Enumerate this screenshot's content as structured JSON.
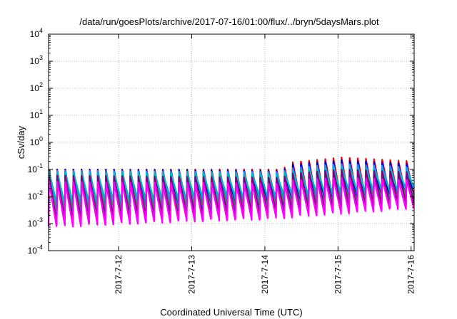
{
  "chart_data": {
    "type": "line",
    "title": "/data/run/goesPlots/archive/2017-07-16/01:00/flux/../bryn/5daysMars.plot",
    "xlabel": "Coordinated Universal Time (UTC)",
    "ylabel": "cSv/day",
    "yscale": "log",
    "ylim": [
      0.0001,
      10000
    ],
    "y_ticks": [
      {
        "base": "10",
        "exp": "-4",
        "value": 0.0001
      },
      {
        "base": "10",
        "exp": "-3",
        "value": 0.001
      },
      {
        "base": "10",
        "exp": "-2",
        "value": 0.01
      },
      {
        "base": "10",
        "exp": "-1",
        "value": 0.1
      },
      {
        "base": "10",
        "exp": "0",
        "value": 1
      },
      {
        "base": "10",
        "exp": "1",
        "value": 10
      },
      {
        "base": "10",
        "exp": "2",
        "value": 100
      },
      {
        "base": "10",
        "exp": "3",
        "value": 1000
      },
      {
        "base": "10",
        "exp": "4",
        "value": 10000
      }
    ],
    "xlim": [
      "2017-07-11T01:00",
      "2017-07-16T01:00"
    ],
    "x_ticks": [
      {
        "label": "2017-7-12",
        "date": "2017-07-12T00:00"
      },
      {
        "label": "2017-7-13",
        "date": "2017-07-13T00:00"
      },
      {
        "label": "2017-7-14",
        "date": "2017-07-14T00:00"
      },
      {
        "label": "2017-7-15",
        "date": "2017-07-15T00:00"
      },
      {
        "label": "2017-7-16",
        "date": "2017-07-16T00:00"
      }
    ],
    "grid": true,
    "legend": "none",
    "series": [
      {
        "color": "#ff0000",
        "peak_envelope": [
          [
            0,
            0.1
          ],
          [
            3.2,
            0.1
          ],
          [
            3.3,
            0.18
          ],
          [
            4.0,
            0.28
          ],
          [
            5.0,
            0.2
          ]
        ],
        "trough_envelope": [
          [
            0,
            0.0025
          ],
          [
            1.5,
            0.004
          ],
          [
            3.0,
            0.006
          ],
          [
            5.0,
            0.012
          ]
        ]
      },
      {
        "color": "#0000cc",
        "peak_envelope": [
          [
            0,
            0.1
          ],
          [
            3.2,
            0.09
          ],
          [
            3.3,
            0.15
          ],
          [
            4.0,
            0.22
          ],
          [
            5.0,
            0.16
          ]
        ],
        "trough_envelope": [
          [
            0,
            0.0018
          ],
          [
            1.5,
            0.003
          ],
          [
            3.0,
            0.004
          ],
          [
            5.0,
            0.008
          ]
        ]
      },
      {
        "color": "#1e90ff",
        "peak_envelope": [
          [
            0,
            0.09
          ],
          [
            3.2,
            0.08
          ],
          [
            3.3,
            0.11
          ],
          [
            4.0,
            0.16
          ],
          [
            5.0,
            0.12
          ]
        ],
        "trough_envelope": [
          [
            0,
            0.004
          ],
          [
            1.5,
            0.006
          ],
          [
            3.0,
            0.008
          ],
          [
            5.0,
            0.018
          ]
        ]
      },
      {
        "color": "#00bbbb",
        "peak_envelope": [
          [
            0,
            0.08
          ],
          [
            3.2,
            0.07
          ],
          [
            3.3,
            0.09
          ],
          [
            4.0,
            0.12
          ],
          [
            5.0,
            0.09
          ]
        ],
        "trough_envelope": [
          [
            0,
            0.006
          ],
          [
            1.5,
            0.008
          ],
          [
            3.0,
            0.01
          ],
          [
            5.0,
            0.02
          ]
        ]
      },
      {
        "color": "#2e8b57",
        "peak_envelope": [
          [
            0,
            0.04
          ],
          [
            3.2,
            0.035
          ],
          [
            3.3,
            0.045
          ],
          [
            4.0,
            0.06
          ],
          [
            5.0,
            0.05
          ]
        ],
        "trough_envelope": [
          [
            0,
            0.003
          ],
          [
            1.5,
            0.004
          ],
          [
            3.0,
            0.005
          ],
          [
            5.0,
            0.01
          ]
        ]
      },
      {
        "color": "#800080",
        "peak_envelope": [
          [
            0,
            0.06
          ],
          [
            3.2,
            0.05
          ],
          [
            3.3,
            0.07
          ],
          [
            4.0,
            0.1
          ],
          [
            5.0,
            0.08
          ]
        ],
        "trough_envelope": [
          [
            0,
            0.0012
          ],
          [
            1.5,
            0.0018
          ],
          [
            3.0,
            0.0025
          ],
          [
            5.0,
            0.006
          ]
        ]
      },
      {
        "color": "#ff00ff",
        "peak_envelope": [
          [
            0,
            0.035
          ],
          [
            3.2,
            0.03
          ],
          [
            3.3,
            0.04
          ],
          [
            4.0,
            0.05
          ],
          [
            5.0,
            0.04
          ]
        ],
        "trough_envelope": [
          [
            0,
            0.0008
          ],
          [
            1.5,
            0.0012
          ],
          [
            3.0,
            0.0016
          ],
          [
            5.0,
            0.004
          ]
        ]
      }
    ]
  }
}
